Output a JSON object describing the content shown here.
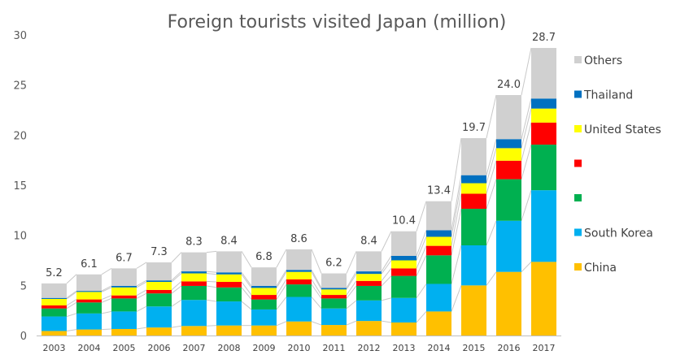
{
  "chart_data": {
    "type": "bar",
    "stacked": true,
    "title": "Foreign tourists visited Japan (million)",
    "xlabel": "",
    "ylabel": "",
    "ylim": [
      0,
      30
    ],
    "yticks": [
      0,
      5,
      10,
      15,
      20,
      25,
      30
    ],
    "grid": false,
    "legend_position": "right",
    "categories": [
      "2003",
      "2004",
      "2005",
      "2006",
      "2007",
      "2008",
      "2009",
      "2010",
      "2011",
      "2012",
      "2013",
      "2014",
      "2015",
      "2016",
      "2017"
    ],
    "totals": [
      5.2,
      6.1,
      6.7,
      7.3,
      8.3,
      8.4,
      6.8,
      8.6,
      6.2,
      8.4,
      10.4,
      13.4,
      19.7,
      24.0,
      28.7
    ],
    "total_labels": [
      "5.2",
      "6.1",
      "6.7",
      "7.3",
      "8.3",
      "8.4",
      "6.8",
      "8.6",
      "6.2",
      "8.4",
      "10.4",
      "13.4",
      "19.7",
      "24.0",
      "28.7"
    ],
    "series": [
      {
        "name": "China",
        "color": "#FFC000",
        "values": [
          0.45,
          0.6,
          0.65,
          0.8,
          0.95,
          1.0,
          1.0,
          1.4,
          1.05,
          1.45,
          1.3,
          2.4,
          5.0,
          6.35,
          7.35
        ]
      },
      {
        "name": "South Korea",
        "color": "#00B0F0",
        "values": [
          1.45,
          1.6,
          1.75,
          2.1,
          2.6,
          2.4,
          1.6,
          2.45,
          1.65,
          2.05,
          2.45,
          2.75,
          4.0,
          5.1,
          7.15
        ]
      },
      {
        "name": "",
        "color": "#00B050",
        "values": [
          0.8,
          1.1,
          1.3,
          1.3,
          1.4,
          1.4,
          1.0,
          1.25,
          1.0,
          1.45,
          2.2,
          2.85,
          3.65,
          4.15,
          4.55
        ]
      },
      {
        "name": "",
        "color": "#FF0000",
        "values": [
          0.3,
          0.3,
          0.3,
          0.35,
          0.45,
          0.55,
          0.45,
          0.5,
          0.35,
          0.5,
          0.75,
          0.95,
          1.5,
          1.85,
          2.2
        ]
      },
      {
        "name": "United States",
        "color": "#FFFF00",
        "values": [
          0.65,
          0.75,
          0.8,
          0.8,
          0.8,
          0.75,
          0.7,
          0.75,
          0.55,
          0.7,
          0.8,
          0.9,
          1.05,
          1.25,
          1.4
        ]
      },
      {
        "name": "Thailand",
        "color": "#0070C0",
        "values": [
          0.1,
          0.1,
          0.15,
          0.15,
          0.2,
          0.2,
          0.2,
          0.2,
          0.15,
          0.25,
          0.45,
          0.65,
          0.8,
          0.9,
          1.0
        ]
      },
      {
        "name": "Others",
        "color": "#D0D0D0",
        "values": [
          1.45,
          1.65,
          1.75,
          1.8,
          1.9,
          2.1,
          1.85,
          2.05,
          1.45,
          2.0,
          2.45,
          2.9,
          3.7,
          4.4,
          5.05
        ]
      }
    ],
    "legend_order": [
      "Others",
      "Thailand",
      "United States",
      "",
      "",
      "South Korea",
      "China"
    ]
  }
}
